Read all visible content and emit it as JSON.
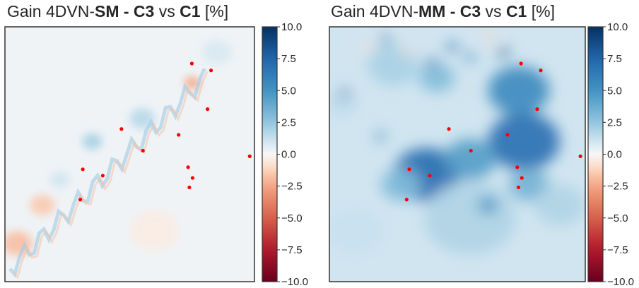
{
  "chart_data": [
    {
      "type": "heatmap",
      "title": {
        "prefix": "Gain 4DVN-",
        "bold1": "SM - C3",
        "middle": " vs ",
        "bold2": "C1",
        "suffix": " [%]"
      },
      "colormap": "RdBu",
      "clim": [
        -10,
        10
      ],
      "colorbar_ticks": [
        "10.0",
        "7.5",
        "5.0",
        "2.5",
        "0.0",
        "−2.5",
        "−5.0",
        "−7.5",
        "−10.0"
      ],
      "grid": false,
      "axes_ticks": false,
      "stations": [
        {
          "x": 0.749,
          "y": 0.144
        },
        {
          "x": 0.826,
          "y": 0.171
        },
        {
          "x": 0.812,
          "y": 0.323
        },
        {
          "x": 0.467,
          "y": 0.401
        },
        {
          "x": 0.696,
          "y": 0.424
        },
        {
          "x": 0.553,
          "y": 0.486
        },
        {
          "x": 0.981,
          "y": 0.508
        },
        {
          "x": 0.734,
          "y": 0.551
        },
        {
          "x": 0.312,
          "y": 0.559
        },
        {
          "x": 0.392,
          "y": 0.584
        },
        {
          "x": 0.752,
          "y": 0.593
        },
        {
          "x": 0.739,
          "y": 0.63
        },
        {
          "x": 0.302,
          "y": 0.678
        }
      ],
      "features": [
        {
          "x": 0.55,
          "y": 0.36,
          "w": 0.05,
          "v": 1.6
        },
        {
          "x": 0.35,
          "y": 0.45,
          "w": 0.04,
          "v": 2.0
        },
        {
          "x": 0.75,
          "y": 0.22,
          "w": 0.03,
          "v": -2.6
        },
        {
          "x": 0.15,
          "y": 0.7,
          "w": 0.05,
          "v": -1.5
        },
        {
          "x": 0.22,
          "y": 0.6,
          "w": 0.04,
          "v": 1.0
        },
        {
          "x": 0.05,
          "y": 0.85,
          "w": 0.06,
          "v": -1.8
        },
        {
          "x": 0.85,
          "y": 0.1,
          "w": 0.06,
          "v": 0.8
        },
        {
          "x": 0.6,
          "y": 0.8,
          "w": 0.1,
          "v": -0.4
        }
      ],
      "background": 0.2
    },
    {
      "type": "heatmap",
      "title": {
        "prefix": "Gain 4DVN-",
        "bold1": "MM - C3",
        "middle": " vs ",
        "bold2": "C1",
        "suffix": " [%]"
      },
      "colormap": "RdBu",
      "clim": [
        -10,
        10
      ],
      "colorbar_ticks": [
        "10.0",
        "7.5",
        "5.0",
        "2.5",
        "0.0",
        "−2.5",
        "−5.0",
        "−7.5",
        "−10.0"
      ],
      "grid": false,
      "axes_ticks": false,
      "stations": [
        {
          "x": 0.749,
          "y": 0.144
        },
        {
          "x": 0.826,
          "y": 0.171
        },
        {
          "x": 0.812,
          "y": 0.323
        },
        {
          "x": 0.467,
          "y": 0.401
        },
        {
          "x": 0.696,
          "y": 0.424
        },
        {
          "x": 0.553,
          "y": 0.486
        },
        {
          "x": 0.981,
          "y": 0.508
        },
        {
          "x": 0.734,
          "y": 0.551
        },
        {
          "x": 0.312,
          "y": 0.559
        },
        {
          "x": 0.392,
          "y": 0.584
        },
        {
          "x": 0.752,
          "y": 0.593
        },
        {
          "x": 0.739,
          "y": 0.63
        },
        {
          "x": 0.302,
          "y": 0.678
        }
      ],
      "features": [
        {
          "x": 0.76,
          "y": 0.45,
          "w": 0.14,
          "v": 7.0
        },
        {
          "x": 0.74,
          "y": 0.25,
          "w": 0.12,
          "v": 5.5
        },
        {
          "x": 0.38,
          "y": 0.58,
          "w": 0.13,
          "v": 7.2
        },
        {
          "x": 0.55,
          "y": 0.52,
          "w": 0.1,
          "v": 4.5
        },
        {
          "x": 0.78,
          "y": 0.62,
          "w": 0.08,
          "v": 3.5
        },
        {
          "x": 0.28,
          "y": 0.62,
          "w": 0.08,
          "v": 3.0
        },
        {
          "x": 0.55,
          "y": 0.75,
          "w": 0.18,
          "v": 1.8
        },
        {
          "x": 0.25,
          "y": 0.15,
          "w": 0.1,
          "v": 2.0
        },
        {
          "x": 0.42,
          "y": 0.2,
          "w": 0.07,
          "v": 3.0
        },
        {
          "x": 0.9,
          "y": 0.7,
          "w": 0.1,
          "v": 1.8
        },
        {
          "x": 0.1,
          "y": 0.8,
          "w": 0.12,
          "v": 1.2
        },
        {
          "x": 0.05,
          "y": 0.3,
          "w": 0.06,
          "v": 1.5
        },
        {
          "x": 0.48,
          "y": 0.08,
          "w": 0.02,
          "v": 8.0
        },
        {
          "x": 0.68,
          "y": 0.1,
          "w": 0.02,
          "v": 9.0
        },
        {
          "x": 0.4,
          "y": 0.14,
          "w": 0.02,
          "v": 7.5
        },
        {
          "x": 0.22,
          "y": 0.05,
          "w": 0.02,
          "v": 6.5
        },
        {
          "x": 0.06,
          "y": 0.26,
          "w": 0.02,
          "v": 7.0
        },
        {
          "x": 0.55,
          "y": 0.12,
          "w": 0.02,
          "v": 6.0
        },
        {
          "x": 0.2,
          "y": 0.43,
          "w": 0.02,
          "v": 5.5
        },
        {
          "x": 0.62,
          "y": 0.7,
          "w": 0.04,
          "v": 5.0
        },
        {
          "x": 0.62,
          "y": 0.04,
          "w": 0.02,
          "v": -1.2
        },
        {
          "x": 0.15,
          "y": 0.08,
          "w": 0.02,
          "v": -1.0
        },
        {
          "x": 0.3,
          "y": 0.1,
          "w": 0.02,
          "v": -0.8
        }
      ],
      "background": 1.0
    }
  ]
}
